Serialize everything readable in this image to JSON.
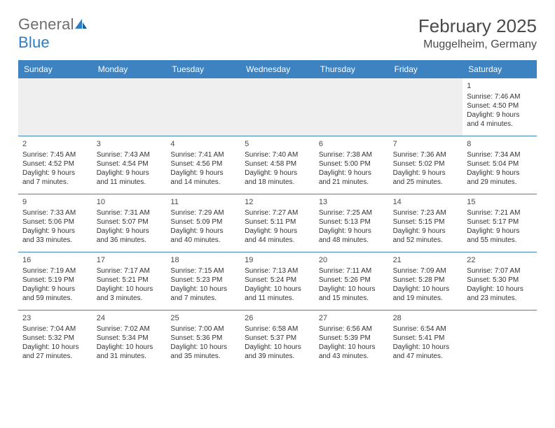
{
  "brand": {
    "text_a": "General",
    "text_b": "Blue"
  },
  "title": "February 2025",
  "location": "Muggelheim, Germany",
  "colors": {
    "header_bar": "#3d83c2",
    "header_text": "#ffffff",
    "empty_bg": "#efefef",
    "rule": "#3d83c2",
    "body_text": "#333333",
    "title_text": "#4a4a4a",
    "brand_gray": "#6e6e6e",
    "brand_blue": "#2a7ec7",
    "page_bg": "#ffffff"
  },
  "fonts": {
    "body_pt": 10,
    "daynum_pt": 11,
    "dow_pt": 12,
    "title_pt": 26,
    "location_pt": 16,
    "brand_pt": 22
  },
  "dow": [
    "Sunday",
    "Monday",
    "Tuesday",
    "Wednesday",
    "Thursday",
    "Friday",
    "Saturday"
  ],
  "weeks": [
    [
      null,
      null,
      null,
      null,
      null,
      null,
      {
        "n": "1",
        "sunrise": "7:46 AM",
        "sunset": "4:50 PM",
        "daylight": "9 hours and 4 minutes."
      }
    ],
    [
      {
        "n": "2",
        "sunrise": "7:45 AM",
        "sunset": "4:52 PM",
        "daylight": "9 hours and 7 minutes."
      },
      {
        "n": "3",
        "sunrise": "7:43 AM",
        "sunset": "4:54 PM",
        "daylight": "9 hours and 11 minutes."
      },
      {
        "n": "4",
        "sunrise": "7:41 AM",
        "sunset": "4:56 PM",
        "daylight": "9 hours and 14 minutes."
      },
      {
        "n": "5",
        "sunrise": "7:40 AM",
        "sunset": "4:58 PM",
        "daylight": "9 hours and 18 minutes."
      },
      {
        "n": "6",
        "sunrise": "7:38 AM",
        "sunset": "5:00 PM",
        "daylight": "9 hours and 21 minutes."
      },
      {
        "n": "7",
        "sunrise": "7:36 AM",
        "sunset": "5:02 PM",
        "daylight": "9 hours and 25 minutes."
      },
      {
        "n": "8",
        "sunrise": "7:34 AM",
        "sunset": "5:04 PM",
        "daylight": "9 hours and 29 minutes."
      }
    ],
    [
      {
        "n": "9",
        "sunrise": "7:33 AM",
        "sunset": "5:06 PM",
        "daylight": "9 hours and 33 minutes."
      },
      {
        "n": "10",
        "sunrise": "7:31 AM",
        "sunset": "5:07 PM",
        "daylight": "9 hours and 36 minutes."
      },
      {
        "n": "11",
        "sunrise": "7:29 AM",
        "sunset": "5:09 PM",
        "daylight": "9 hours and 40 minutes."
      },
      {
        "n": "12",
        "sunrise": "7:27 AM",
        "sunset": "5:11 PM",
        "daylight": "9 hours and 44 minutes."
      },
      {
        "n": "13",
        "sunrise": "7:25 AM",
        "sunset": "5:13 PM",
        "daylight": "9 hours and 48 minutes."
      },
      {
        "n": "14",
        "sunrise": "7:23 AM",
        "sunset": "5:15 PM",
        "daylight": "9 hours and 52 minutes."
      },
      {
        "n": "15",
        "sunrise": "7:21 AM",
        "sunset": "5:17 PM",
        "daylight": "9 hours and 55 minutes."
      }
    ],
    [
      {
        "n": "16",
        "sunrise": "7:19 AM",
        "sunset": "5:19 PM",
        "daylight": "9 hours and 59 minutes."
      },
      {
        "n": "17",
        "sunrise": "7:17 AM",
        "sunset": "5:21 PM",
        "daylight": "10 hours and 3 minutes."
      },
      {
        "n": "18",
        "sunrise": "7:15 AM",
        "sunset": "5:23 PM",
        "daylight": "10 hours and 7 minutes."
      },
      {
        "n": "19",
        "sunrise": "7:13 AM",
        "sunset": "5:24 PM",
        "daylight": "10 hours and 11 minutes."
      },
      {
        "n": "20",
        "sunrise": "7:11 AM",
        "sunset": "5:26 PM",
        "daylight": "10 hours and 15 minutes."
      },
      {
        "n": "21",
        "sunrise": "7:09 AM",
        "sunset": "5:28 PM",
        "daylight": "10 hours and 19 minutes."
      },
      {
        "n": "22",
        "sunrise": "7:07 AM",
        "sunset": "5:30 PM",
        "daylight": "10 hours and 23 minutes."
      }
    ],
    [
      {
        "n": "23",
        "sunrise": "7:04 AM",
        "sunset": "5:32 PM",
        "daylight": "10 hours and 27 minutes."
      },
      {
        "n": "24",
        "sunrise": "7:02 AM",
        "sunset": "5:34 PM",
        "daylight": "10 hours and 31 minutes."
      },
      {
        "n": "25",
        "sunrise": "7:00 AM",
        "sunset": "5:36 PM",
        "daylight": "10 hours and 35 minutes."
      },
      {
        "n": "26",
        "sunrise": "6:58 AM",
        "sunset": "5:37 PM",
        "daylight": "10 hours and 39 minutes."
      },
      {
        "n": "27",
        "sunrise": "6:56 AM",
        "sunset": "5:39 PM",
        "daylight": "10 hours and 43 minutes."
      },
      {
        "n": "28",
        "sunrise": "6:54 AM",
        "sunset": "5:41 PM",
        "daylight": "10 hours and 47 minutes."
      },
      null
    ]
  ],
  "labels": {
    "sunrise": "Sunrise: ",
    "sunset": "Sunset: ",
    "daylight": "Daylight: "
  }
}
